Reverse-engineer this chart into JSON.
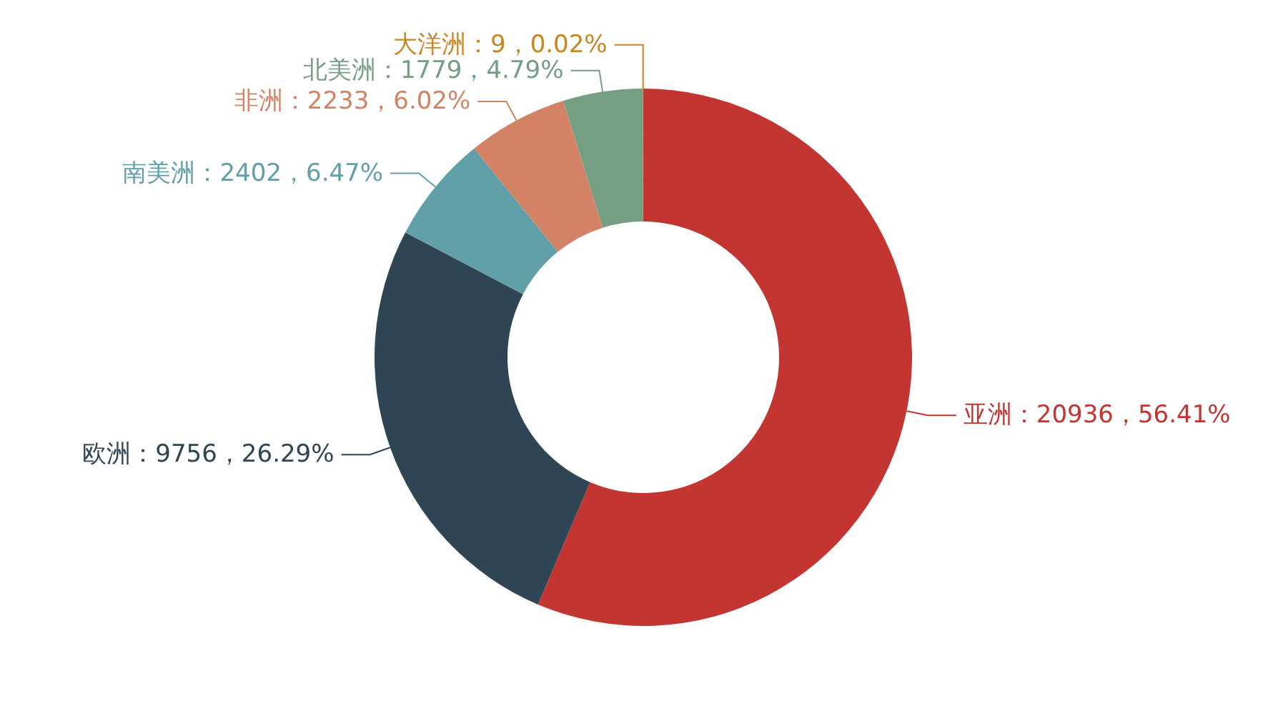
{
  "chart_data": {
    "type": "donut",
    "categories": [
      "亚洲",
      "欧洲",
      "南美洲",
      "非洲",
      "北美洲",
      "大洋洲"
    ],
    "values": [
      20936,
      9756,
      2402,
      2233,
      1779,
      9
    ],
    "colors": [
      "#c23531",
      "#2f4554",
      "#61a0a8",
      "#d48265",
      "#749f83",
      "#ca8622"
    ],
    "value_labels": [
      "：20936，56.41%",
      "：9756，26.29%",
      "：2402，6.47%",
      "：2233，6.02%",
      "：1779，4.79%",
      "：9，0.02%"
    ]
  }
}
